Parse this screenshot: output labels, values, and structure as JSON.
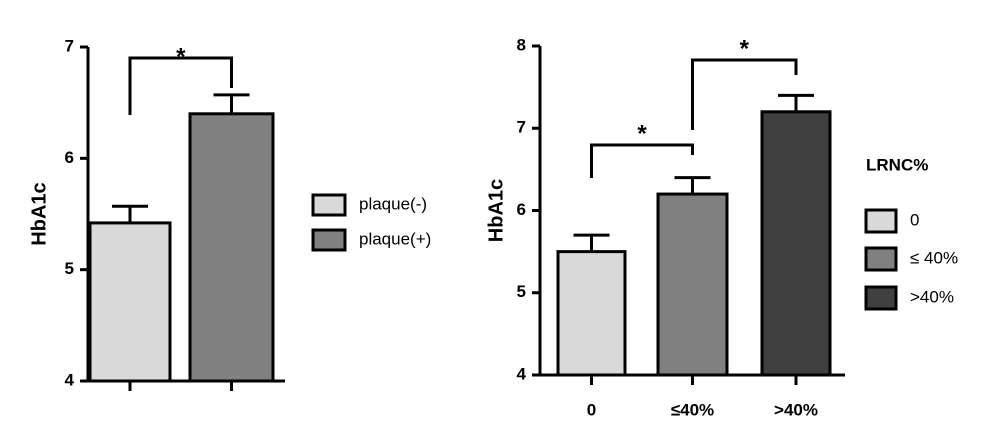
{
  "chart_data": [
    {
      "type": "bar",
      "y_label": "HbA1c",
      "categories": [
        null,
        null
      ],
      "values": [
        5.42,
        6.4
      ],
      "errors": [
        0.15,
        0.17
      ],
      "colors": [
        "#d9d9d9",
        "#808080"
      ],
      "legend": [
        "plaque(-)",
        "plaque(+)"
      ],
      "annotations": [
        "*"
      ],
      "ylim": [
        4,
        7
      ],
      "yticks": [
        4,
        5,
        6,
        7
      ]
    },
    {
      "type": "bar",
      "y_label": "HbA1c",
      "categories": [
        "0",
        "≤40%",
        ">40%"
      ],
      "values": [
        5.5,
        6.2,
        7.2
      ],
      "errors": [
        0.2,
        0.2,
        0.2
      ],
      "colors": [
        "#d9d9d9",
        "#808080",
        "#404040"
      ],
      "legend_title": "LRNC%",
      "legend": [
        "0",
        "≤ 40%",
        ">40%"
      ],
      "annotations": [
        "*",
        "*"
      ],
      "ylim": [
        4,
        8
      ],
      "yticks": [
        4,
        5,
        6,
        7,
        8
      ]
    }
  ]
}
